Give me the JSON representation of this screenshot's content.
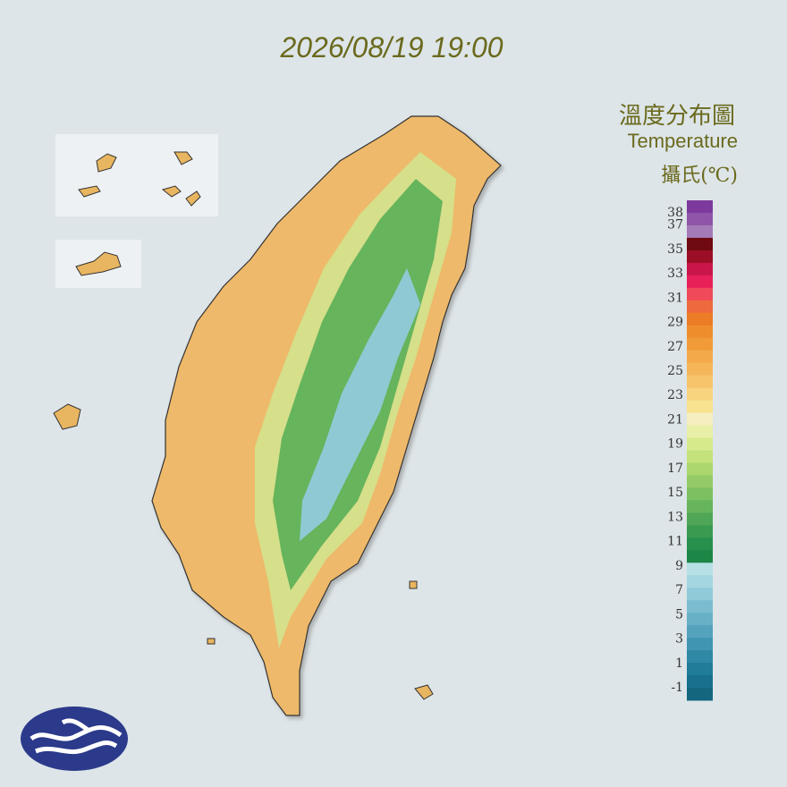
{
  "timestamp": "2026/08/19 19:00",
  "legend": {
    "title": "溫度分布圖",
    "subtitle": "Temperature",
    "unit": "攝氏(℃)",
    "ticks": [
      38,
      37,
      35,
      33,
      31,
      29,
      27,
      25,
      23,
      21,
      19,
      17,
      15,
      13,
      11,
      9,
      7,
      5,
      3,
      1,
      -1
    ],
    "colors": [
      "#7d3a9c",
      "#8e55a8",
      "#a57ab8",
      "#6e0a10",
      "#9b0f26",
      "#c9164a",
      "#e8205a",
      "#f0495a",
      "#ee6a3e",
      "#ec7c26",
      "#ee8d2c",
      "#f19a38",
      "#f3a94a",
      "#f5b65a",
      "#f7c46c",
      "#f8d47e",
      "#f9e28f",
      "#f6eec0",
      "#e8f0a8",
      "#d6ea8c",
      "#c4e27c",
      "#acd66e",
      "#94cb66",
      "#7dc062",
      "#66b45c",
      "#4fa656",
      "#3a9a50",
      "#27904c",
      "#1c8646",
      "#b6e0e6",
      "#a4d6e0",
      "#90cad8",
      "#7cbcd0",
      "#68b0c6",
      "#54a2bc",
      "#4096b2",
      "#2e88a6",
      "#217c9a",
      "#18708e",
      "#14667f"
    ]
  }
}
